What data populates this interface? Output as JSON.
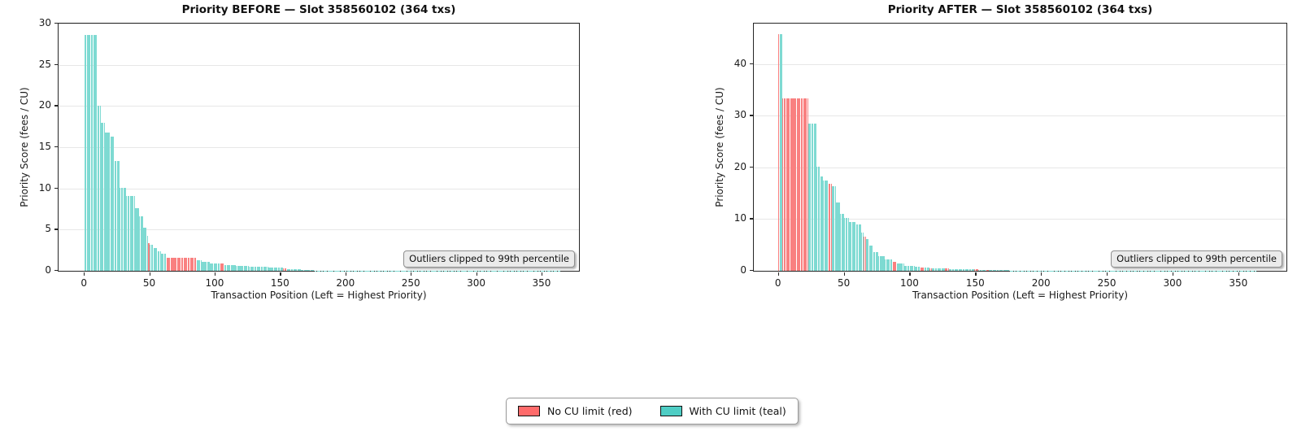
{
  "figure": {
    "background": "#ffffff",
    "legend": [
      {
        "label": "No CU limit (red)",
        "color": "#ff6b6b",
        "series_key": "r"
      },
      {
        "label": "With CU limit (teal)",
        "color": "#4ecdc4",
        "series_key": "t"
      }
    ]
  },
  "colors": {
    "bar_red": "#f98080",
    "bar_teal": "#7edad2",
    "grid": "#e7e7e7",
    "spine": "#262626",
    "annotation_bg": "#ebebeb"
  },
  "chart_data": [
    {
      "type": "bar",
      "title": "Priority BEFORE — Slot 358560102 (364 txs)",
      "xlabel": "Transaction Position (Left = Highest Priority)",
      "ylabel": "Priority Score (fees / CU)",
      "annotation": "Outliers clipped to 99th percentile",
      "n_bars": 364,
      "xlim": [
        -20,
        378
      ],
      "ylim": [
        0,
        30
      ],
      "xticks": [
        0,
        50,
        100,
        150,
        200,
        250,
        300,
        350
      ],
      "yticks": [
        0,
        5,
        10,
        15,
        20,
        25,
        30
      ],
      "grid": "horizontal",
      "legend_note": "bars colored r = No CU limit (red), t = With CU limit (teal)",
      "segments_format": [
        "pos_from",
        "pos_to",
        "value",
        "color"
      ],
      "segments": [
        [
          0,
          9,
          28.6,
          "t"
        ],
        [
          10,
          12,
          20.0,
          "t"
        ],
        [
          13,
          15,
          18.0,
          "t"
        ],
        [
          16,
          19,
          16.8,
          "t"
        ],
        [
          20,
          22,
          16.3,
          "t"
        ],
        [
          23,
          26,
          13.3,
          "t"
        ],
        [
          27,
          31,
          10.1,
          "t"
        ],
        [
          32,
          38,
          9.1,
          "t"
        ],
        [
          39,
          41,
          7.6,
          "t"
        ],
        [
          42,
          44,
          6.6,
          "t"
        ],
        [
          45,
          47,
          5.2,
          "t"
        ],
        [
          48,
          48,
          4.2,
          "t"
        ],
        [
          49,
          49,
          3.4,
          "r"
        ],
        [
          50,
          52,
          3.2,
          "t"
        ],
        [
          53,
          55,
          2.8,
          "t"
        ],
        [
          56,
          58,
          2.4,
          "t"
        ],
        [
          59,
          62,
          2.1,
          "t"
        ],
        [
          63,
          85,
          1.6,
          "r"
        ],
        [
          86,
          89,
          1.3,
          "t"
        ],
        [
          90,
          95,
          1.1,
          "t"
        ],
        [
          96,
          103,
          0.9,
          "t"
        ],
        [
          104,
          106,
          0.85,
          "r"
        ],
        [
          107,
          115,
          0.7,
          "t"
        ],
        [
          116,
          125,
          0.55,
          "t"
        ],
        [
          126,
          140,
          0.45,
          "t"
        ],
        [
          141,
          151,
          0.35,
          "t"
        ],
        [
          152,
          154,
          0.3,
          "r"
        ],
        [
          155,
          165,
          0.22,
          "t"
        ],
        [
          166,
          175,
          0.12,
          "t"
        ],
        [
          176,
          200,
          0.05,
          "t"
        ],
        [
          201,
          363,
          0.02,
          "t"
        ]
      ]
    },
    {
      "type": "bar",
      "title": "Priority AFTER — Slot 358560102 (364 txs)",
      "xlabel": "Transaction Position (Left = Highest Priority)",
      "ylabel": "Priority Score (fees / CU)",
      "annotation": "Outliers clipped to 99th percentile",
      "n_bars": 364,
      "xlim": [
        -19,
        386
      ],
      "ylim": [
        0,
        47.8
      ],
      "xticks": [
        0,
        50,
        100,
        150,
        200,
        250,
        300,
        350
      ],
      "yticks": [
        0,
        10,
        20,
        30,
        40
      ],
      "grid": "horizontal",
      "legend_note": "bars colored r = No CU limit (red), t = With CU limit (teal)",
      "segments_format": [
        "pos_from",
        "pos_to",
        "value",
        "color"
      ],
      "segments": [
        [
          0,
          0,
          45.8,
          "r"
        ],
        [
          1,
          2,
          45.8,
          "t"
        ],
        [
          3,
          22,
          33.3,
          "r"
        ],
        [
          23,
          28,
          28.5,
          "t"
        ],
        [
          29,
          31,
          20.2,
          "t"
        ],
        [
          32,
          33,
          18.2,
          "t"
        ],
        [
          34,
          37,
          17.4,
          "t"
        ],
        [
          38,
          40,
          16.8,
          "r"
        ],
        [
          41,
          43,
          16.4,
          "t"
        ],
        [
          44,
          46,
          13.2,
          "t"
        ],
        [
          47,
          49,
          11.0,
          "t"
        ],
        [
          50,
          53,
          10.2,
          "t"
        ],
        [
          54,
          58,
          9.5,
          "t"
        ],
        [
          59,
          62,
          9.0,
          "t"
        ],
        [
          63,
          64,
          7.4,
          "t"
        ],
        [
          65,
          66,
          6.6,
          "r"
        ],
        [
          67,
          68,
          6.2,
          "t"
        ],
        [
          69,
          71,
          4.8,
          "t"
        ],
        [
          72,
          75,
          3.6,
          "t"
        ],
        [
          76,
          80,
          2.8,
          "t"
        ],
        [
          81,
          86,
          2.2,
          "t"
        ],
        [
          87,
          89,
          1.8,
          "r"
        ],
        [
          90,
          95,
          1.4,
          "t"
        ],
        [
          96,
          103,
          1.0,
          "t"
        ],
        [
          104,
          107,
          0.8,
          "t"
        ],
        [
          108,
          110,
          0.7,
          "r"
        ],
        [
          111,
          114,
          0.6,
          "t"
        ],
        [
          115,
          116,
          0.55,
          "r"
        ],
        [
          117,
          126,
          0.45,
          "t"
        ],
        [
          127,
          129,
          0.4,
          "r"
        ],
        [
          130,
          148,
          0.3,
          "t"
        ],
        [
          149,
          151,
          0.25,
          "r"
        ],
        [
          152,
          157,
          0.2,
          "t"
        ],
        [
          158,
          159,
          0.18,
          "r"
        ],
        [
          160,
          175,
          0.1,
          "t"
        ],
        [
          176,
          363,
          0.02,
          "t"
        ]
      ]
    }
  ]
}
